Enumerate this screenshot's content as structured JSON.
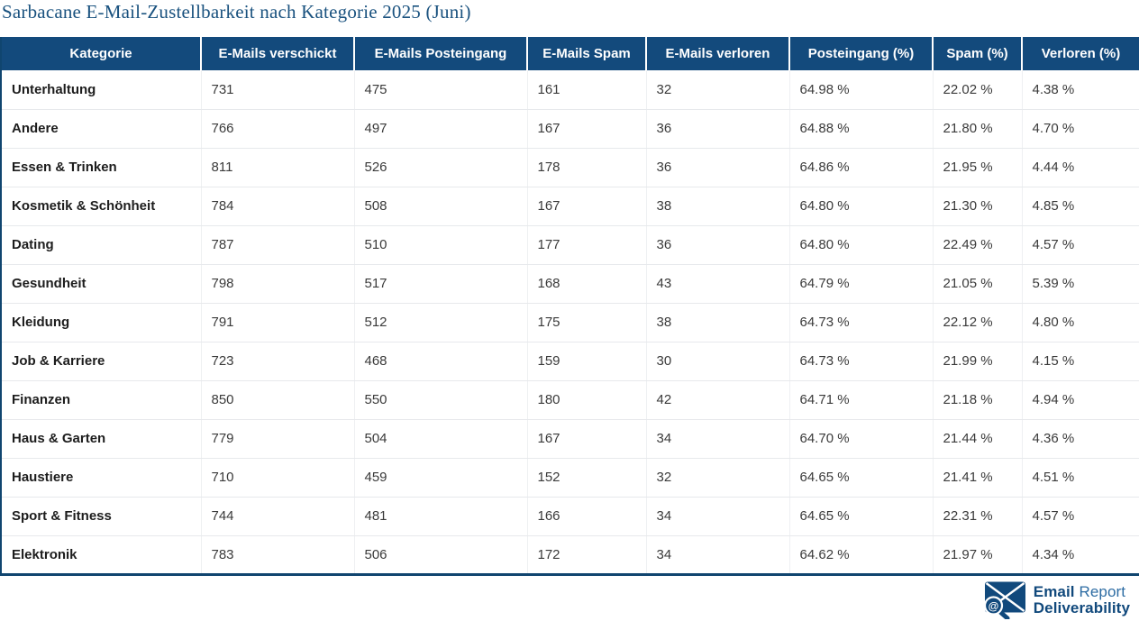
{
  "title": "Sarbacane E-Mail-Zustellbarkeit nach Kategorie 2025 (Juni)",
  "colors": {
    "header_bg": "#134a7c",
    "header_text": "#ffffff",
    "title_text": "#1a527f",
    "table_border": "#10456f",
    "row_separator": "#e7e9ec",
    "category_text": "#1d1d1d",
    "value_text": "#3a3a3a",
    "logo_blue": "#11497c",
    "logo_light_blue": "#2d6ca3"
  },
  "logo": {
    "icon": "envelope-magnifier-at-icon",
    "at_symbol": "@",
    "word1": "Email",
    "word2": "Report",
    "word3": "Deliverability"
  },
  "chart_data": {
    "type": "table",
    "title": "Sarbacane E-Mail-Zustellbarkeit nach Kategorie 2025 (Juni)",
    "columns": [
      "Kategorie",
      "E-Mails verschickt",
      "E-Mails Posteingang",
      "E-Mails Spam",
      "E-Mails verloren",
      "Posteingang (%)",
      "Spam (%)",
      "Verloren (%)"
    ],
    "rows": [
      [
        "Unterhaltung",
        "731",
        "475",
        "161",
        "32",
        "64.98 %",
        "22.02 %",
        "4.38 %"
      ],
      [
        "Andere",
        "766",
        "497",
        "167",
        "36",
        "64.88 %",
        "21.80 %",
        "4.70 %"
      ],
      [
        "Essen & Trinken",
        "811",
        "526",
        "178",
        "36",
        "64.86 %",
        "21.95 %",
        "4.44 %"
      ],
      [
        "Kosmetik & Schönheit",
        "784",
        "508",
        "167",
        "38",
        "64.80 %",
        "21.30 %",
        "4.85 %"
      ],
      [
        "Dating",
        "787",
        "510",
        "177",
        "36",
        "64.80 %",
        "22.49 %",
        "4.57 %"
      ],
      [
        "Gesundheit",
        "798",
        "517",
        "168",
        "43",
        "64.79 %",
        "21.05 %",
        "5.39 %"
      ],
      [
        "Kleidung",
        "791",
        "512",
        "175",
        "38",
        "64.73 %",
        "22.12 %",
        "4.80 %"
      ],
      [
        "Job & Karriere",
        "723",
        "468",
        "159",
        "30",
        "64.73 %",
        "21.99 %",
        "4.15 %"
      ],
      [
        "Finanzen",
        "850",
        "550",
        "180",
        "42",
        "64.71 %",
        "21.18 %",
        "4.94 %"
      ],
      [
        "Haus & Garten",
        "779",
        "504",
        "167",
        "34",
        "64.70 %",
        "21.44 %",
        "4.36 %"
      ],
      [
        "Haustiere",
        "710",
        "459",
        "152",
        "32",
        "64.65 %",
        "21.41 %",
        "4.51 %"
      ],
      [
        "Sport & Fitness",
        "744",
        "481",
        "166",
        "34",
        "64.65 %",
        "22.31 %",
        "4.57 %"
      ],
      [
        "Elektronik",
        "783",
        "506",
        "172",
        "34",
        "64.62 %",
        "21.97 %",
        "4.34 %"
      ]
    ]
  }
}
